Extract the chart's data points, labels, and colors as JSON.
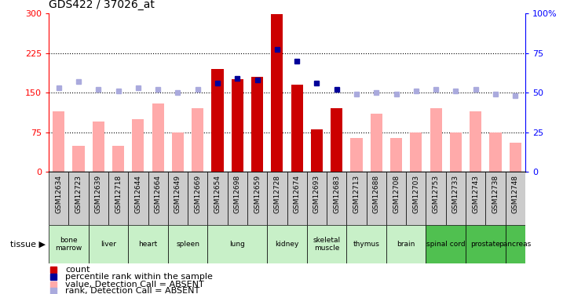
{
  "title": "GDS422 / 37026_at",
  "samples": [
    "GSM12634",
    "GSM12723",
    "GSM12639",
    "GSM12718",
    "GSM12644",
    "GSM12664",
    "GSM12649",
    "GSM12669",
    "GSM12654",
    "GSM12698",
    "GSM12659",
    "GSM12728",
    "GSM12674",
    "GSM12693",
    "GSM12683",
    "GSM12713",
    "GSM12688",
    "GSM12708",
    "GSM12703",
    "GSM12753",
    "GSM12733",
    "GSM12743",
    "GSM12738",
    "GSM12748"
  ],
  "red_bar_values": [
    null,
    null,
    null,
    null,
    null,
    null,
    null,
    null,
    195,
    175,
    180,
    298,
    165,
    80,
    120,
    null,
    null,
    null,
    null,
    null,
    null,
    null,
    null,
    null
  ],
  "pink_bar_values": [
    115,
    50,
    95,
    50,
    100,
    130,
    75,
    120,
    null,
    null,
    null,
    null,
    null,
    null,
    null,
    65,
    110,
    65,
    75,
    120,
    75,
    115,
    75,
    55
  ],
  "blue_sq_pct": [
    null,
    null,
    null,
    null,
    null,
    null,
    null,
    null,
    56,
    59,
    58,
    77,
    70,
    56,
    52,
    null,
    null,
    null,
    null,
    null,
    null,
    null,
    null,
    null
  ],
  "lightblue_sq_pct": [
    53,
    57,
    52,
    51,
    53,
    52,
    50,
    52,
    null,
    null,
    null,
    null,
    null,
    null,
    null,
    49,
    50,
    49,
    51,
    52,
    51,
    52,
    49,
    48
  ],
  "tissues": [
    {
      "name": "bone\nmarrow",
      "start": 0,
      "end": 2,
      "color": "#c8f0c8"
    },
    {
      "name": "liver",
      "start": 2,
      "end": 4,
      "color": "#c8f0c8"
    },
    {
      "name": "heart",
      "start": 4,
      "end": 6,
      "color": "#c8f0c8"
    },
    {
      "name": "spleen",
      "start": 6,
      "end": 8,
      "color": "#c8f0c8"
    },
    {
      "name": "lung",
      "start": 8,
      "end": 11,
      "color": "#c8f0c8"
    },
    {
      "name": "kidney",
      "start": 11,
      "end": 13,
      "color": "#c8f0c8"
    },
    {
      "name": "skeletal\nmuscle",
      "start": 13,
      "end": 15,
      "color": "#c8f0c8"
    },
    {
      "name": "thymus",
      "start": 15,
      "end": 17,
      "color": "#c8f0c8"
    },
    {
      "name": "brain",
      "start": 17,
      "end": 19,
      "color": "#c8f0c8"
    },
    {
      "name": "spinal cord",
      "start": 19,
      "end": 21,
      "color": "#50c050"
    },
    {
      "name": "prostate",
      "start": 21,
      "end": 23,
      "color": "#50c050"
    },
    {
      "name": "pancreas",
      "start": 23,
      "end": 24,
      "color": "#50c050"
    }
  ],
  "ylim_left": [
    0,
    300
  ],
  "ylim_right": [
    0,
    100
  ],
  "yticks_left": [
    0,
    75,
    150,
    225,
    300
  ],
  "ytick_labels_left": [
    "0",
    "75",
    "150",
    "225",
    "300"
  ],
  "yticks_right": [
    0,
    25,
    50,
    75,
    100
  ],
  "ytick_labels_right": [
    "0",
    "25",
    "50",
    "75",
    "100%"
  ],
  "hlines": [
    75,
    150,
    225
  ],
  "bar_width": 0.6,
  "red_color": "#cc0000",
  "pink_color": "#ffaaaa",
  "blue_color": "#000099",
  "lightblue_color": "#aaaadd",
  "title_fontsize": 10,
  "legend_items": [
    {
      "color": "#cc0000",
      "label": "count"
    },
    {
      "color": "#000099",
      "label": "percentile rank within the sample"
    },
    {
      "color": "#ffaaaa",
      "label": "value, Detection Call = ABSENT"
    },
    {
      "color": "#aaaadd",
      "label": "rank, Detection Call = ABSENT"
    }
  ]
}
